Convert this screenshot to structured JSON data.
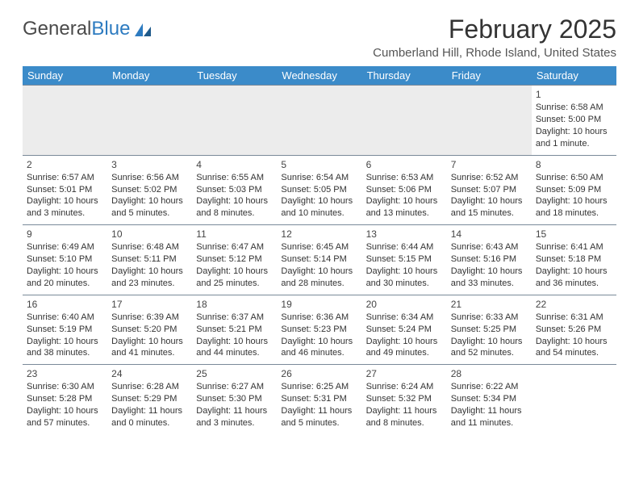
{
  "logo": {
    "text_gray": "General",
    "text_blue": "Blue"
  },
  "title": "February 2025",
  "location": "Cumberland Hill, Rhode Island, United States",
  "colors": {
    "header_bar": "#3b8bc9",
    "header_text": "#ffffff",
    "row_border": "#7a8a99",
    "first_week_bg": "#ececec",
    "body_text": "#333333"
  },
  "weekdays": [
    "Sunday",
    "Monday",
    "Tuesday",
    "Wednesday",
    "Thursday",
    "Friday",
    "Saturday"
  ],
  "weeks": [
    [
      null,
      null,
      null,
      null,
      null,
      null,
      {
        "n": "1",
        "sunrise": "Sunrise: 6:58 AM",
        "sunset": "Sunset: 5:00 PM",
        "daylight": "Daylight: 10 hours and 1 minute."
      }
    ],
    [
      {
        "n": "2",
        "sunrise": "Sunrise: 6:57 AM",
        "sunset": "Sunset: 5:01 PM",
        "daylight": "Daylight: 10 hours and 3 minutes."
      },
      {
        "n": "3",
        "sunrise": "Sunrise: 6:56 AM",
        "sunset": "Sunset: 5:02 PM",
        "daylight": "Daylight: 10 hours and 5 minutes."
      },
      {
        "n": "4",
        "sunrise": "Sunrise: 6:55 AM",
        "sunset": "Sunset: 5:03 PM",
        "daylight": "Daylight: 10 hours and 8 minutes."
      },
      {
        "n": "5",
        "sunrise": "Sunrise: 6:54 AM",
        "sunset": "Sunset: 5:05 PM",
        "daylight": "Daylight: 10 hours and 10 minutes."
      },
      {
        "n": "6",
        "sunrise": "Sunrise: 6:53 AM",
        "sunset": "Sunset: 5:06 PM",
        "daylight": "Daylight: 10 hours and 13 minutes."
      },
      {
        "n": "7",
        "sunrise": "Sunrise: 6:52 AM",
        "sunset": "Sunset: 5:07 PM",
        "daylight": "Daylight: 10 hours and 15 minutes."
      },
      {
        "n": "8",
        "sunrise": "Sunrise: 6:50 AM",
        "sunset": "Sunset: 5:09 PM",
        "daylight": "Daylight: 10 hours and 18 minutes."
      }
    ],
    [
      {
        "n": "9",
        "sunrise": "Sunrise: 6:49 AM",
        "sunset": "Sunset: 5:10 PM",
        "daylight": "Daylight: 10 hours and 20 minutes."
      },
      {
        "n": "10",
        "sunrise": "Sunrise: 6:48 AM",
        "sunset": "Sunset: 5:11 PM",
        "daylight": "Daylight: 10 hours and 23 minutes."
      },
      {
        "n": "11",
        "sunrise": "Sunrise: 6:47 AM",
        "sunset": "Sunset: 5:12 PM",
        "daylight": "Daylight: 10 hours and 25 minutes."
      },
      {
        "n": "12",
        "sunrise": "Sunrise: 6:45 AM",
        "sunset": "Sunset: 5:14 PM",
        "daylight": "Daylight: 10 hours and 28 minutes."
      },
      {
        "n": "13",
        "sunrise": "Sunrise: 6:44 AM",
        "sunset": "Sunset: 5:15 PM",
        "daylight": "Daylight: 10 hours and 30 minutes."
      },
      {
        "n": "14",
        "sunrise": "Sunrise: 6:43 AM",
        "sunset": "Sunset: 5:16 PM",
        "daylight": "Daylight: 10 hours and 33 minutes."
      },
      {
        "n": "15",
        "sunrise": "Sunrise: 6:41 AM",
        "sunset": "Sunset: 5:18 PM",
        "daylight": "Daylight: 10 hours and 36 minutes."
      }
    ],
    [
      {
        "n": "16",
        "sunrise": "Sunrise: 6:40 AM",
        "sunset": "Sunset: 5:19 PM",
        "daylight": "Daylight: 10 hours and 38 minutes."
      },
      {
        "n": "17",
        "sunrise": "Sunrise: 6:39 AM",
        "sunset": "Sunset: 5:20 PM",
        "daylight": "Daylight: 10 hours and 41 minutes."
      },
      {
        "n": "18",
        "sunrise": "Sunrise: 6:37 AM",
        "sunset": "Sunset: 5:21 PM",
        "daylight": "Daylight: 10 hours and 44 minutes."
      },
      {
        "n": "19",
        "sunrise": "Sunrise: 6:36 AM",
        "sunset": "Sunset: 5:23 PM",
        "daylight": "Daylight: 10 hours and 46 minutes."
      },
      {
        "n": "20",
        "sunrise": "Sunrise: 6:34 AM",
        "sunset": "Sunset: 5:24 PM",
        "daylight": "Daylight: 10 hours and 49 minutes."
      },
      {
        "n": "21",
        "sunrise": "Sunrise: 6:33 AM",
        "sunset": "Sunset: 5:25 PM",
        "daylight": "Daylight: 10 hours and 52 minutes."
      },
      {
        "n": "22",
        "sunrise": "Sunrise: 6:31 AM",
        "sunset": "Sunset: 5:26 PM",
        "daylight": "Daylight: 10 hours and 54 minutes."
      }
    ],
    [
      {
        "n": "23",
        "sunrise": "Sunrise: 6:30 AM",
        "sunset": "Sunset: 5:28 PM",
        "daylight": "Daylight: 10 hours and 57 minutes."
      },
      {
        "n": "24",
        "sunrise": "Sunrise: 6:28 AM",
        "sunset": "Sunset: 5:29 PM",
        "daylight": "Daylight: 11 hours and 0 minutes."
      },
      {
        "n": "25",
        "sunrise": "Sunrise: 6:27 AM",
        "sunset": "Sunset: 5:30 PM",
        "daylight": "Daylight: 11 hours and 3 minutes."
      },
      {
        "n": "26",
        "sunrise": "Sunrise: 6:25 AM",
        "sunset": "Sunset: 5:31 PM",
        "daylight": "Daylight: 11 hours and 5 minutes."
      },
      {
        "n": "27",
        "sunrise": "Sunrise: 6:24 AM",
        "sunset": "Sunset: 5:32 PM",
        "daylight": "Daylight: 11 hours and 8 minutes."
      },
      {
        "n": "28",
        "sunrise": "Sunrise: 6:22 AM",
        "sunset": "Sunset: 5:34 PM",
        "daylight": "Daylight: 11 hours and 11 minutes."
      },
      null
    ]
  ]
}
